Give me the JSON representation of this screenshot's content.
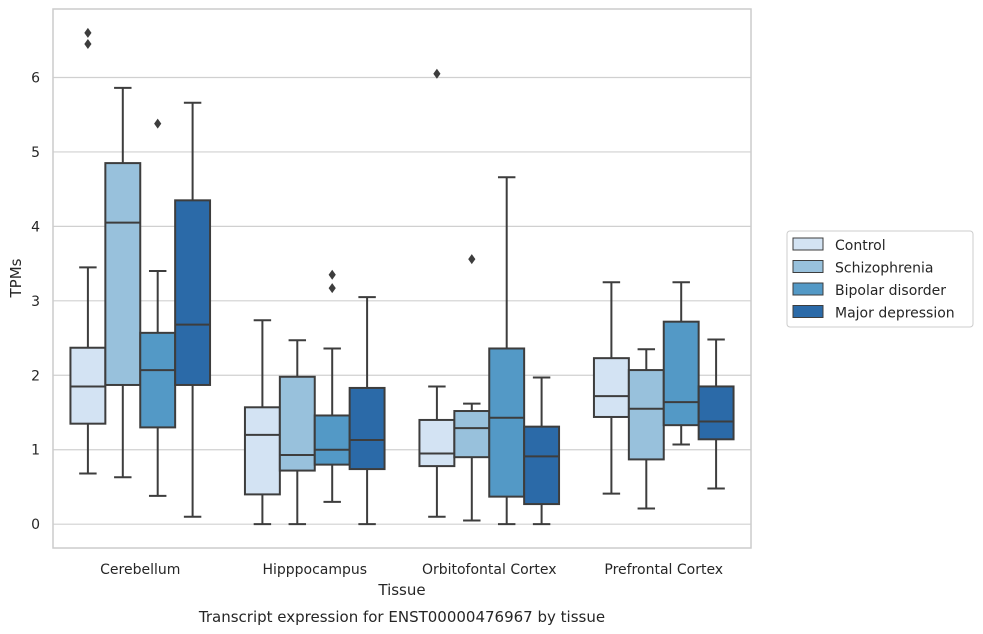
{
  "chart_data": {
    "type": "boxplot",
    "title": "",
    "caption": "Transcript expression for ENST00000476967 by tissue",
    "xlabel": "Tissue",
    "ylabel": "TPMs",
    "ylim": [
      -0.32,
      6.92
    ],
    "yticks": [
      "0",
      "1",
      "2",
      "3",
      "4",
      "5",
      "6"
    ],
    "grid": "horizontal",
    "legend_position": "right",
    "categories": [
      "Cerebellum",
      "Hipppocampus",
      "Orbitofontal Cortex",
      "Prefrontal Cortex"
    ],
    "series": [
      {
        "name": "Control",
        "color": "#d3e3f3",
        "boxes": [
          {
            "whislo": 0.68,
            "q1": 1.35,
            "med": 1.85,
            "q3": 2.37,
            "whishi": 3.45,
            "fliers": []
          },
          {
            "whislo": 0.0,
            "q1": 0.4,
            "med": 1.2,
            "q3": 1.57,
            "whishi": 2.74,
            "fliers": []
          },
          {
            "whislo": 0.1,
            "q1": 0.78,
            "med": 0.95,
            "q3": 1.4,
            "whishi": 1.85,
            "fliers": [
              6.05
            ]
          },
          {
            "whislo": 0.41,
            "q1": 1.44,
            "med": 1.72,
            "q3": 2.23,
            "whishi": 3.25,
            "fliers": []
          }
        ]
      },
      {
        "name": "Schizophrenia",
        "color": "#98c1dc",
        "boxes": [
          {
            "whislo": 0.63,
            "q1": 1.87,
            "med": 4.05,
            "q3": 4.85,
            "whishi": 5.86,
            "fliers": []
          },
          {
            "whislo": 0.0,
            "q1": 0.72,
            "med": 0.93,
            "q3": 1.98,
            "whishi": 2.47,
            "fliers": []
          },
          {
            "whislo": 0.05,
            "q1": 0.9,
            "med": 1.29,
            "q3": 1.52,
            "whishi": 1.62,
            "fliers": [
              3.56
            ]
          },
          {
            "whislo": 0.21,
            "q1": 0.87,
            "med": 1.55,
            "q3": 2.07,
            "whishi": 2.35,
            "fliers": []
          }
        ]
      },
      {
        "name": "Bipolar disorder",
        "color": "#5399c6",
        "boxes": [
          {
            "whislo": 0.38,
            "q1": 1.3,
            "med": 2.07,
            "q3": 2.57,
            "whishi": 3.4,
            "fliers": [
              5.38
            ]
          },
          {
            "whislo": 0.3,
            "q1": 0.8,
            "med": 1.0,
            "q3": 1.46,
            "whishi": 2.36,
            "fliers": [
              3.17,
              3.35
            ]
          },
          {
            "whislo": 0.0,
            "q1": 0.37,
            "med": 1.43,
            "q3": 2.36,
            "whishi": 4.66,
            "fliers": []
          },
          {
            "whislo": 1.07,
            "q1": 1.33,
            "med": 1.64,
            "q3": 2.72,
            "whishi": 3.25,
            "fliers": []
          }
        ]
      },
      {
        "name": "Major depression",
        "color": "#2b6aa8",
        "boxes": [
          {
            "whislo": 0.1,
            "q1": 1.87,
            "med": 2.68,
            "q3": 4.35,
            "whishi": 5.66,
            "fliers": []
          },
          {
            "whislo": 0.0,
            "q1": 0.74,
            "med": 1.13,
            "q3": 1.83,
            "whishi": 3.05,
            "fliers": []
          },
          {
            "whislo": 0.0,
            "q1": 0.27,
            "med": 0.91,
            "q3": 1.31,
            "whishi": 1.97,
            "fliers": []
          },
          {
            "whislo": 0.48,
            "q1": 1.14,
            "med": 1.38,
            "q3": 1.85,
            "whishi": 2.48,
            "fliers": []
          }
        ]
      }
    ],
    "extra_fliers": [
      {
        "category_index": 0,
        "series_index": 0,
        "values": []
      }
    ],
    "top_fliers_cerebellum_control": [
      6.45,
      6.6
    ]
  }
}
